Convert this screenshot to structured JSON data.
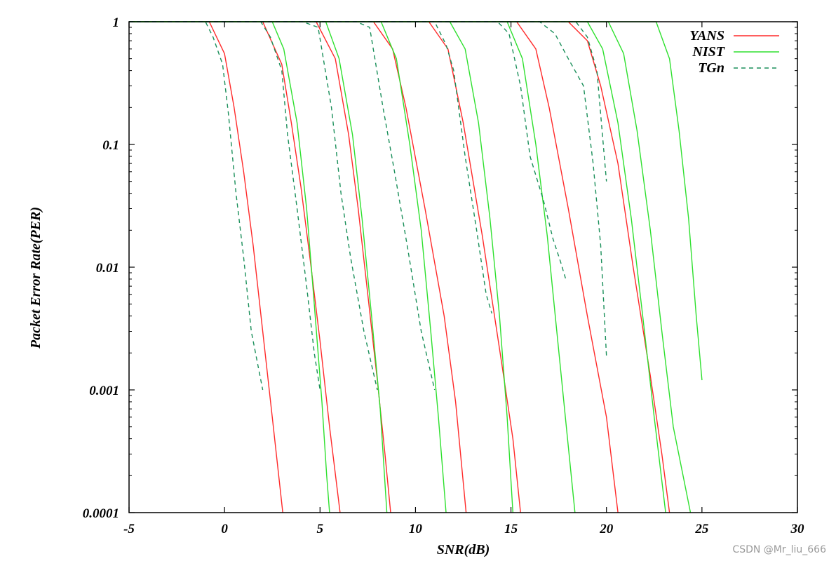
{
  "chart_data": {
    "type": "line",
    "xlabel": "SNR(dB)",
    "ylabel": "Packet Error Rate(PER)",
    "xlim": [
      -5,
      30
    ],
    "ylim": [
      0.0001,
      1
    ],
    "yscale": "log",
    "xticks": [
      -5,
      0,
      5,
      10,
      15,
      20,
      25,
      30
    ],
    "yticks": [
      {
        "value": 1,
        "label": "1"
      },
      {
        "value": 0.1,
        "label": "0.1"
      },
      {
        "value": 0.01,
        "label": "0.01"
      },
      {
        "value": 0.001,
        "label": "0.001"
      },
      {
        "value": 0.0001,
        "label": "0.0001"
      }
    ],
    "grid": false,
    "legend_position": "top-right",
    "series": [
      {
        "name": "YANS",
        "color": "#ff2a2a",
        "dash": "solid",
        "curves": [
          [
            [
              -5,
              1
            ],
            [
              -0.8,
              1
            ],
            [
              0,
              0.55
            ],
            [
              0.5,
              0.2
            ],
            [
              1,
              0.06
            ],
            [
              1.5,
              0.015
            ],
            [
              2,
              0.003
            ],
            [
              2.5,
              0.0006
            ],
            [
              3.05,
              0.0001
            ]
          ],
          [
            [
              -5,
              1
            ],
            [
              2,
              1
            ],
            [
              3,
              0.45
            ],
            [
              3.5,
              0.15
            ],
            [
              4,
              0.045
            ],
            [
              4.5,
              0.011
            ],
            [
              5,
              0.0025
            ],
            [
              5.5,
              0.0005
            ],
            [
              6.05,
              0.0001
            ]
          ],
          [
            [
              -5,
              1
            ],
            [
              4.8,
              1
            ],
            [
              5.8,
              0.5
            ],
            [
              6.5,
              0.12
            ],
            [
              7,
              0.03
            ],
            [
              7.5,
              0.006
            ],
            [
              8,
              0.0012
            ],
            [
              8.4,
              0.0003
            ],
            [
              8.7,
              0.0001
            ]
          ],
          [
            [
              -5,
              1
            ],
            [
              7.8,
              1
            ],
            [
              8.8,
              0.6
            ],
            [
              9.5,
              0.2
            ],
            [
              10.5,
              0.03
            ],
            [
              11.5,
              0.004
            ],
            [
              12.1,
              0.0008
            ],
            [
              12.65,
              0.0001
            ]
          ],
          [
            [
              -5,
              1
            ],
            [
              10.7,
              1
            ],
            [
              11.7,
              0.6
            ],
            [
              12.5,
              0.15
            ],
            [
              13.5,
              0.018
            ],
            [
              14.5,
              0.0017
            ],
            [
              15.1,
              0.0004
            ],
            [
              15.5,
              0.0001
            ]
          ],
          [
            [
              -5,
              1
            ],
            [
              15.3,
              1
            ],
            [
              16.3,
              0.6
            ],
            [
              17,
              0.2
            ],
            [
              18,
              0.03
            ],
            [
              19,
              0.004
            ],
            [
              20,
              0.0006
            ],
            [
              20.6,
              0.0001
            ]
          ],
          [
            [
              -5,
              1
            ],
            [
              18,
              1
            ],
            [
              19,
              0.7
            ],
            [
              19.7,
              0.3
            ],
            [
              20.6,
              0.07
            ],
            [
              21.4,
              0.01
            ],
            [
              22.3,
              0.0013
            ],
            [
              22.9,
              0.0003
            ],
            [
              23.3,
              0.0001
            ]
          ]
        ]
      },
      {
        "name": "NIST",
        "color": "#2ee02e",
        "dash": "solid",
        "curves": [
          [
            [
              -5,
              1
            ],
            [
              2.5,
              1
            ],
            [
              3.1,
              0.6
            ],
            [
              3.8,
              0.15
            ],
            [
              4.3,
              0.03
            ],
            [
              4.7,
              0.005
            ],
            [
              5.1,
              0.0008
            ],
            [
              5.35,
              0.0002
            ],
            [
              5.5,
              0.0001
            ]
          ],
          [
            [
              -5,
              1
            ],
            [
              5.3,
              1
            ],
            [
              6,
              0.5
            ],
            [
              6.7,
              0.12
            ],
            [
              7.2,
              0.025
            ],
            [
              7.7,
              0.004
            ],
            [
              8.15,
              0.0007
            ],
            [
              8.5,
              0.0001
            ]
          ],
          [
            [
              -5,
              1
            ],
            [
              8.2,
              1
            ],
            [
              9,
              0.5
            ],
            [
              9.7,
              0.1
            ],
            [
              10.3,
              0.02
            ],
            [
              10.8,
              0.003
            ],
            [
              11.2,
              0.0006
            ],
            [
              11.6,
              0.0001
            ]
          ],
          [
            [
              -5,
              1
            ],
            [
              11.8,
              1
            ],
            [
              12.6,
              0.6
            ],
            [
              13.3,
              0.15
            ],
            [
              13.9,
              0.025
            ],
            [
              14.4,
              0.004
            ],
            [
              14.8,
              0.0006
            ],
            [
              15.1,
              0.0001
            ]
          ],
          [
            [
              -5,
              1
            ],
            [
              14.8,
              1
            ],
            [
              15.6,
              0.5
            ],
            [
              16.3,
              0.1
            ],
            [
              16.9,
              0.018
            ],
            [
              17.4,
              0.003
            ],
            [
              17.9,
              0.0005
            ],
            [
              18.35,
              0.0001
            ]
          ],
          [
            [
              -5,
              1
            ],
            [
              19,
              1
            ],
            [
              19.8,
              0.6
            ],
            [
              20.6,
              0.15
            ],
            [
              21.3,
              0.025
            ],
            [
              21.9,
              0.004
            ],
            [
              22.5,
              0.0006
            ],
            [
              23.1,
              0.0001
            ]
          ],
          [
            [
              -5,
              1
            ],
            [
              20.1,
              1
            ],
            [
              20.9,
              0.55
            ],
            [
              21.6,
              0.13
            ],
            [
              22.3,
              0.02
            ],
            [
              22.9,
              0.003
            ],
            [
              23.5,
              0.0005
            ],
            [
              24.4,
              0.0001
            ]
          ],
          [
            [
              -5,
              1
            ],
            [
              22.6,
              1
            ],
            [
              23.3,
              0.5
            ],
            [
              23.8,
              0.13
            ],
            [
              24.3,
              0.025
            ],
            [
              24.7,
              0.004
            ],
            [
              25,
              0.0012
            ]
          ]
        ]
      },
      {
        "name": "TGn",
        "color": "#1a8f5a",
        "dash": "dashed",
        "curves": [
          [
            [
              -5,
              1
            ],
            [
              -1,
              1
            ],
            [
              -0.6,
              0.75
            ],
            [
              -0.1,
              0.45
            ],
            [
              0.2,
              0.18
            ],
            [
              0.6,
              0.04
            ],
            [
              1,
              0.012
            ],
            [
              1.4,
              0.003
            ],
            [
              2,
              0.001
            ]
          ],
          [
            [
              -5,
              1
            ],
            [
              1.9,
              1
            ],
            [
              2.4,
              0.75
            ],
            [
              3,
              0.4
            ],
            [
              3.3,
              0.12
            ],
            [
              3.8,
              0.03
            ],
            [
              4.3,
              0.007
            ],
            [
              4.7,
              0.002
            ],
            [
              5,
              0.001
            ]
          ],
          [
            [
              -5,
              1
            ],
            [
              4.1,
              1
            ],
            [
              4.9,
              0.9
            ],
            [
              5.6,
              0.2
            ],
            [
              6.1,
              0.04
            ],
            [
              6.6,
              0.012
            ],
            [
              7.3,
              0.003
            ],
            [
              8,
              0.001
            ]
          ],
          [
            [
              -5,
              1
            ],
            [
              6.9,
              1
            ],
            [
              7.6,
              0.9
            ],
            [
              8.3,
              0.2
            ],
            [
              8.9,
              0.06
            ],
            [
              9.6,
              0.014
            ],
            [
              10.3,
              0.003
            ],
            [
              11,
              0.001
            ]
          ],
          [
            [
              -5,
              1
            ],
            [
              11,
              1
            ],
            [
              11.6,
              0.65
            ],
            [
              12,
              0.4
            ],
            [
              12.6,
              0.08
            ],
            [
              13.2,
              0.02
            ],
            [
              13.7,
              0.006
            ],
            [
              14,
              0.0042
            ]
          ],
          [
            [
              -5,
              1
            ],
            [
              14.3,
              1
            ],
            [
              14.9,
              0.8
            ],
            [
              15.5,
              0.3
            ],
            [
              16,
              0.08
            ],
            [
              16.7,
              0.035
            ],
            [
              17.2,
              0.017
            ],
            [
              17.6,
              0.011
            ],
            [
              17.9,
              0.0077
            ]
          ],
          [
            [
              -5,
              1
            ],
            [
              16.5,
              1
            ],
            [
              17.3,
              0.8
            ],
            [
              18,
              0.5
            ],
            [
              18.8,
              0.3
            ],
            [
              19.3,
              0.07
            ],
            [
              19.7,
              0.015
            ],
            [
              20,
              0.0019
            ]
          ],
          [
            [
              -5,
              1
            ],
            [
              18.4,
              1
            ],
            [
              19,
              0.75
            ],
            [
              19.5,
              0.4
            ],
            [
              20,
              0.05
            ]
          ]
        ]
      }
    ]
  },
  "watermark": "CSDN @Mr_liu_666"
}
